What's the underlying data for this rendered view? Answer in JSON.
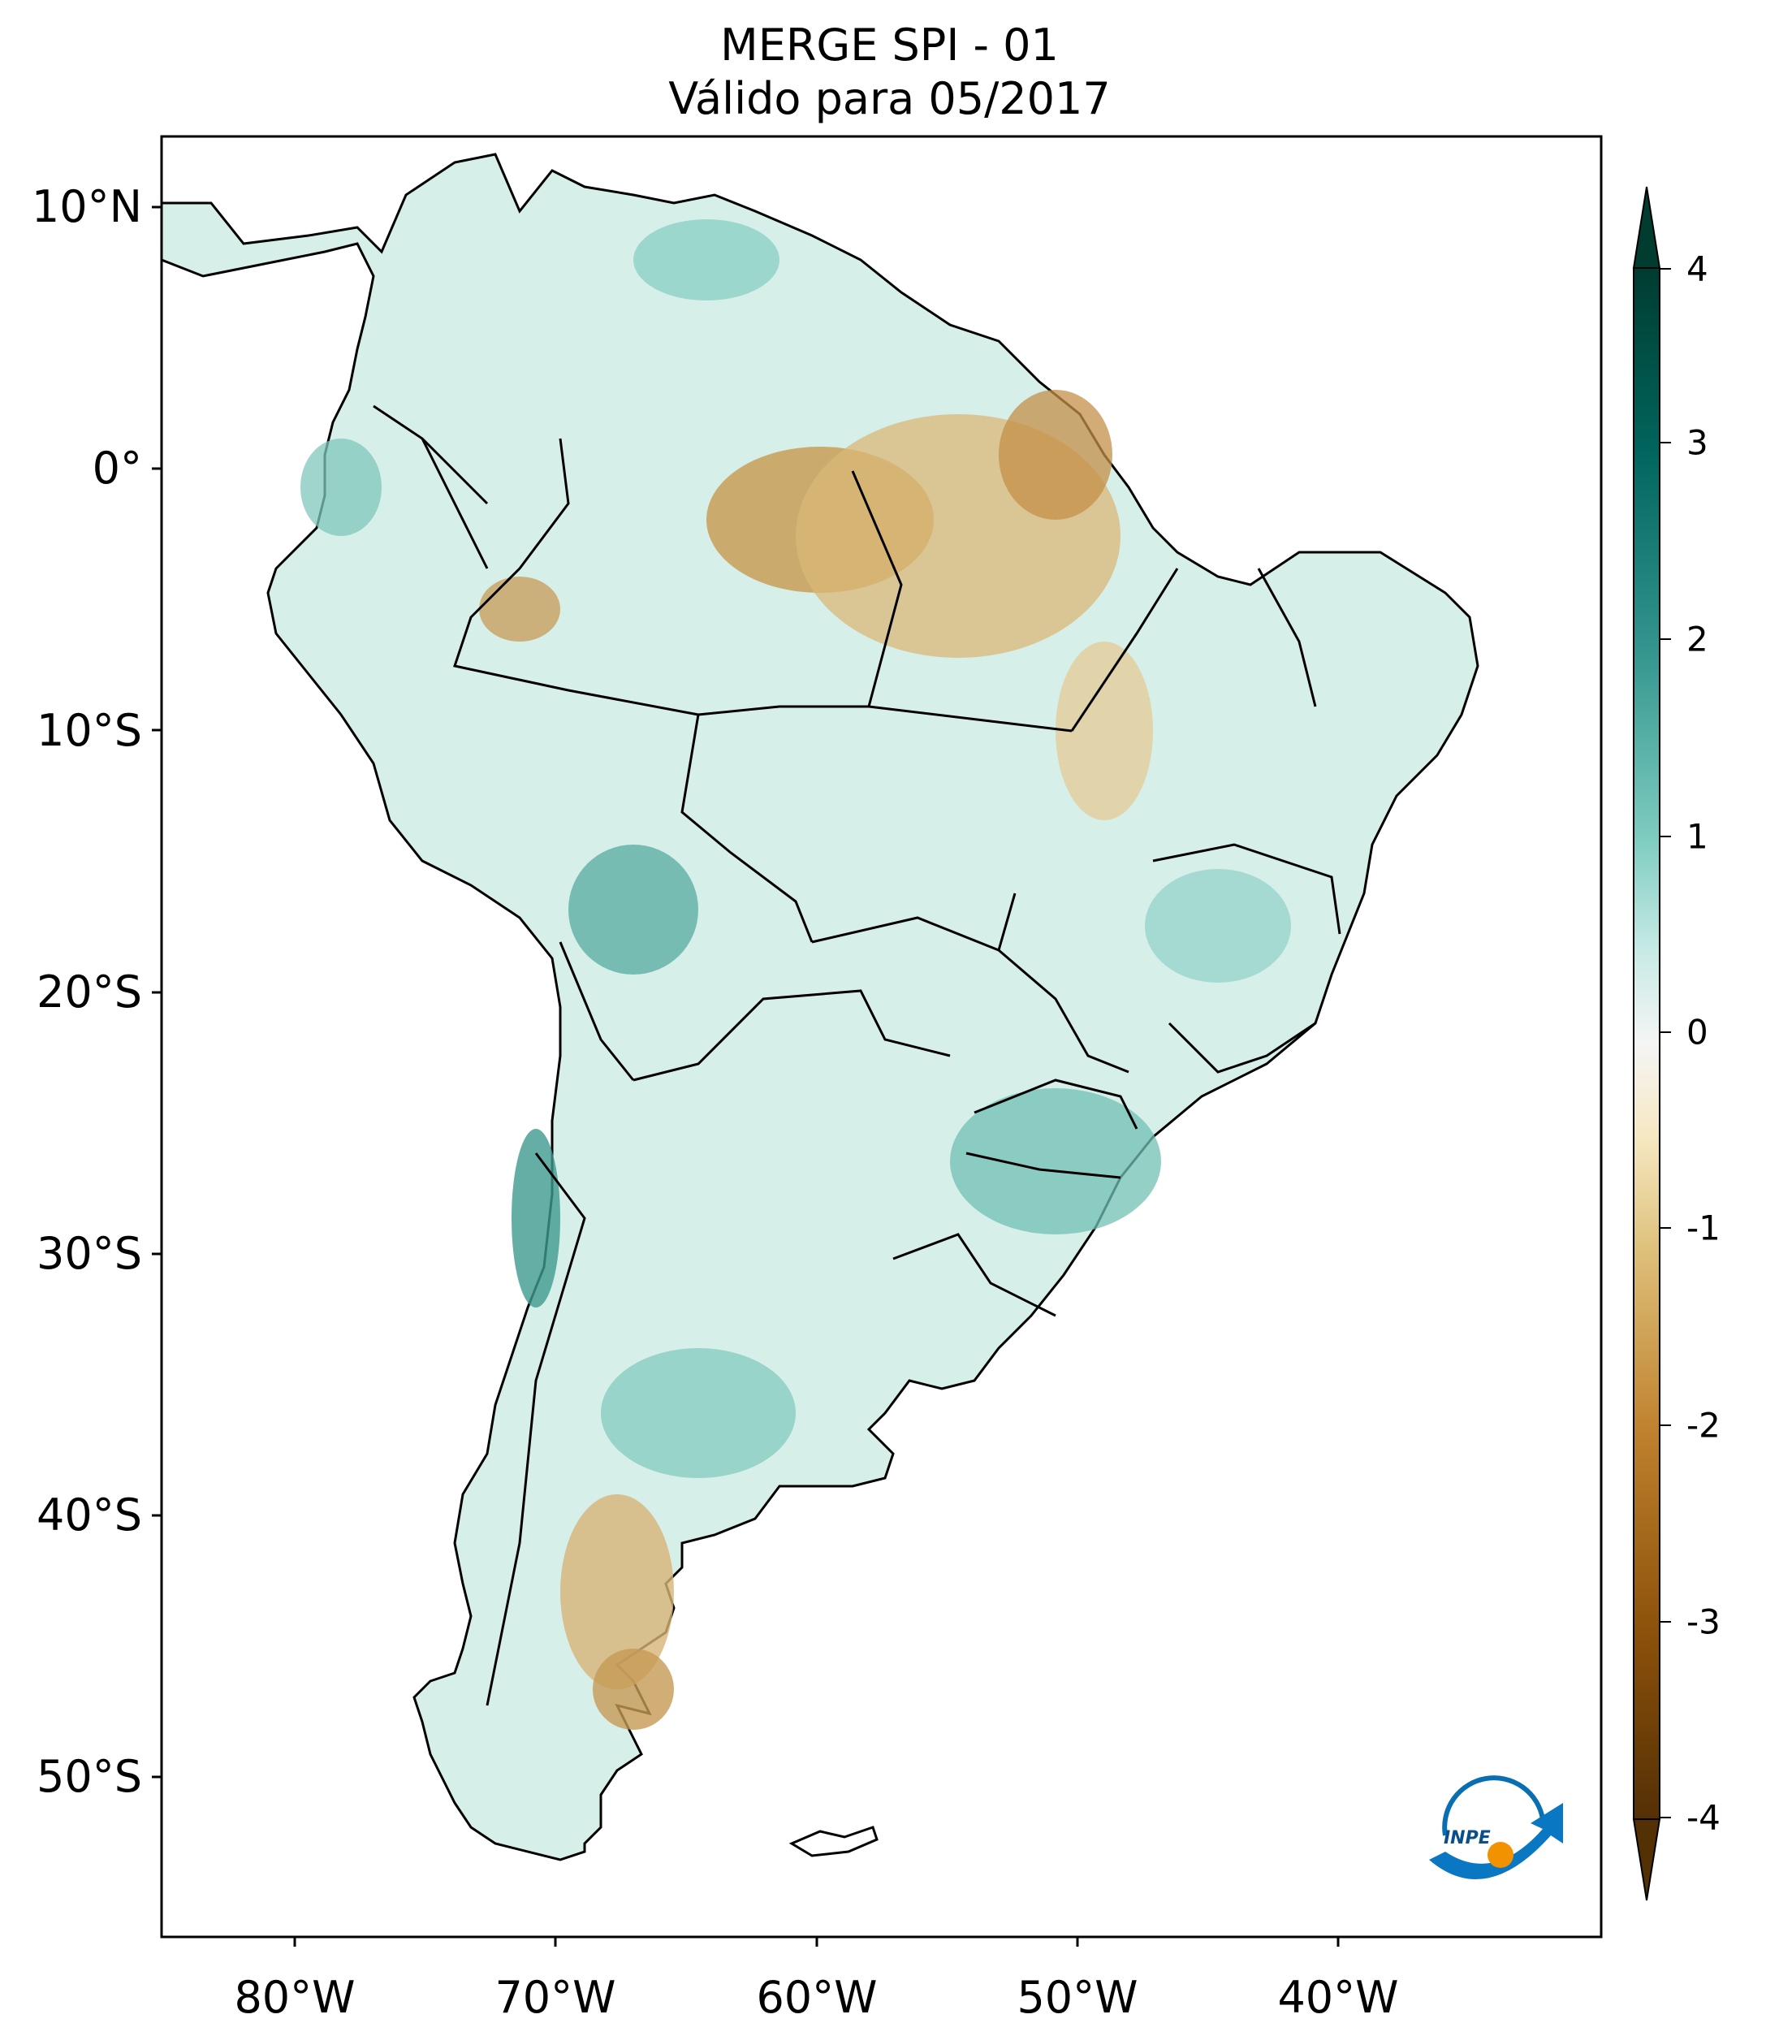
{
  "title": {
    "line1": "MERGE   SPI - 01",
    "line2": "Válido para 05/2017"
  },
  "axes": {
    "latitude_labels": [
      "10°N",
      "0°",
      "10°S",
      "20°S",
      "30°S",
      "40°S",
      "50°S"
    ],
    "longitude_labels": [
      "80°W",
      "70°W",
      "60°W",
      "50°W",
      "40°W"
    ]
  },
  "colorbar": {
    "ticks": [
      "4",
      "3",
      "2",
      "1",
      "0",
      "-1",
      "-2",
      "-3",
      "-4"
    ],
    "range": [
      -4,
      4
    ],
    "extend": "both",
    "colormap": "BrBG",
    "colors": {
      "min": "#543005",
      "dry_strong": "#8c510a",
      "dry": "#bf812d",
      "dry_light": "#dfc27d",
      "neutral_dry": "#f6e8c3",
      "neutral": "#f5f5f5",
      "neutral_wet": "#c7eae5",
      "wet_light": "#80cdc1",
      "wet": "#35978f",
      "wet_strong": "#01665e",
      "max": "#003c30"
    }
  },
  "map": {
    "extent_lon": [
      -85,
      -30
    ],
    "extent_lat": [
      -57,
      13
    ],
    "country_border_color": "#000000",
    "logo_text": "INPE"
  }
}
